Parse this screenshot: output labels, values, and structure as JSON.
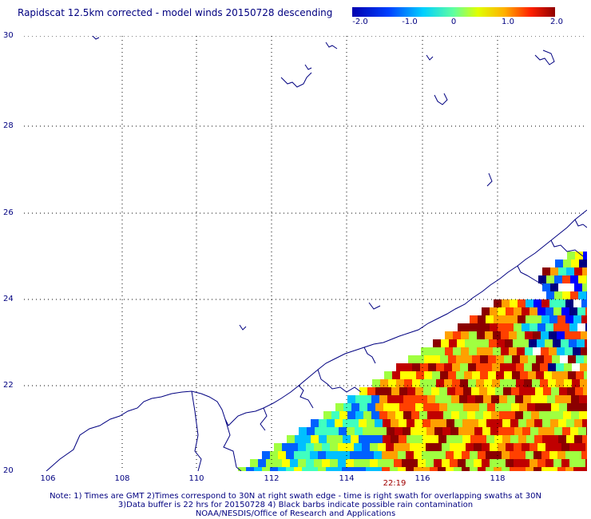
{
  "title": "Rapidscat 12.5km corrected - model winds 20150728 descending",
  "colorbar": {
    "ticks": [
      "-2.0",
      "-1.0",
      "0",
      "1.0",
      "2.0"
    ],
    "min": -2.0,
    "max": 2.0
  },
  "axes": {
    "lat_labels": [
      "30",
      "28",
      "26",
      "24",
      "22",
      "20"
    ],
    "lon_labels": [
      "106",
      "108",
      "110",
      "112",
      "114",
      "116",
      "118"
    ],
    "lat_range": [
      20,
      30
    ],
    "lon_range": [
      105,
      120
    ]
  },
  "time_label": "22:19",
  "notes": {
    "line1": "Note: 1) Times are GMT 2)Times correspond to 30N at right swath edge - time is right swath for overlapping swaths at 30N",
    "line2": "3)Data buffer is 22 hrs for 20150728 4) Black barbs indicate possible rain contamination",
    "line3": "NOAA/NESDIS/Office of Research and Applications"
  },
  "colors": {
    "label": "#000080",
    "coast": "#000080",
    "grid": "#000000",
    "time": "#a00000"
  }
}
